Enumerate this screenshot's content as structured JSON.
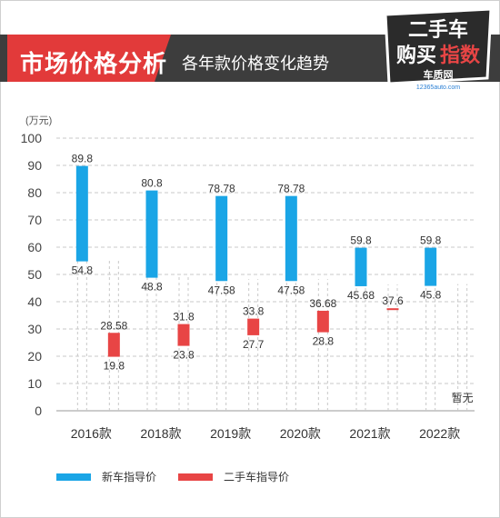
{
  "header": {
    "title": "市场价格分析",
    "subtitle": "各年款价格变化趋势",
    "logo_text_top": "二手车",
    "logo_text_left": "购买",
    "logo_text_right": "指数",
    "logo_sub": "车质网",
    "logo_url_text": "12365auto.com"
  },
  "colors": {
    "new_car": "#1aa5e6",
    "used_car": "#e84545",
    "header_dark": "#3d3d3d",
    "header_red": "#e23a3a",
    "grid": "#c8c8c8"
  },
  "chart_data": {
    "type": "bar",
    "subtype": "floating-range",
    "y_unit_label": "(万元)",
    "ylim": [
      0,
      100
    ],
    "yticks": [
      0,
      10,
      20,
      30,
      40,
      50,
      60,
      70,
      80,
      90,
      100
    ],
    "grid": true,
    "legend_position": "bottom",
    "categories": [
      "2016款",
      "2018款",
      "2019款",
      "2020款",
      "2021款",
      "2022款"
    ],
    "series": [
      {
        "name": "新车指导价",
        "color": "#1aa5e6",
        "ranges": [
          [
            54.8,
            89.8
          ],
          [
            48.8,
            80.8
          ],
          [
            47.58,
            78.78
          ],
          [
            47.58,
            78.78
          ],
          [
            45.68,
            59.8
          ],
          [
            45.8,
            59.8
          ]
        ],
        "low_labels": [
          "54.8",
          "48.8",
          "47.58",
          "47.58",
          "45.68",
          "45.8"
        ],
        "high_labels": [
          "89.8",
          "80.8",
          "78.78",
          "78.78",
          "59.8",
          "59.8"
        ]
      },
      {
        "name": "二手车指导价",
        "color": "#e84545",
        "ranges": [
          [
            19.8,
            28.58
          ],
          [
            23.8,
            31.8
          ],
          [
            27.7,
            33.8
          ],
          [
            28.8,
            36.68
          ],
          [
            37.6,
            37.6
          ],
          null
        ],
        "low_labels": [
          "19.8",
          "23.8",
          "27.7",
          "28.8",
          "",
          ""
        ],
        "high_labels": [
          "28.58",
          "31.8",
          "33.8",
          "36.68",
          "37.6",
          ""
        ],
        "missing_label": "暂无"
      }
    ]
  }
}
